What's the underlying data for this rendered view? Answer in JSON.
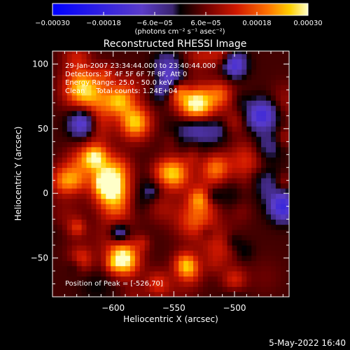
{
  "chart_data": {
    "type": "heatmap",
    "title": "Reconstructed RHESSI Image",
    "xlabel": "Heliocentric X (arcsec)",
    "ylabel": "Heliocentric Y (arcsec)",
    "xlim": [
      -650,
      -455
    ],
    "ylim": [
      -80,
      110
    ],
    "x_ticks": [
      {
        "value": -600,
        "label": "−600"
      },
      {
        "value": -550,
        "label": "−550"
      },
      {
        "value": -500,
        "label": "−500"
      }
    ],
    "y_ticks": [
      {
        "value": 100,
        "label": "100"
      },
      {
        "value": 50,
        "label": "50"
      },
      {
        "value": 0,
        "label": "0"
      },
      {
        "value": -50,
        "label": "−50"
      }
    ],
    "colorbar": {
      "range": [
        -0.0003,
        0.0003
      ],
      "tick_labels": [
        "−0.00030",
        "−0.00018",
        "−6.0e−05",
        "6.0e−05",
        "0.00018",
        "0.00030"
      ],
      "unit_label": "(photons cm⁻² s⁻¹ asec⁻²)"
    },
    "annotations": [
      "29-Jan-2007 23:34:44.000 to 23:40:44.000",
      "Detectors: 3F 4F 5F 6F 7F 8F, Att 0",
      "Energy Range: 25.0 - 50.0 keV",
      "Clean     Total counts: 1.24E+04"
    ],
    "peak_label": "Position of Peak = [-526,70]",
    "peak": {
      "x": -526,
      "y": 70
    },
    "hot_spots": [
      {
        "x": -532,
        "y": 68,
        "amp": 1.0,
        "sigma": 10
      },
      {
        "x": -603,
        "y": 6,
        "amp": 0.95,
        "sigma": 10
      },
      {
        "x": -592,
        "y": -50,
        "amp": 0.9,
        "sigma": 9
      },
      {
        "x": -625,
        "y": 82,
        "amp": 0.85,
        "sigma": 11
      },
      {
        "x": -582,
        "y": 55,
        "amp": 0.75,
        "sigma": 9
      },
      {
        "x": -552,
        "y": 15,
        "amp": 0.7,
        "sigma": 9
      },
      {
        "x": -615,
        "y": 28,
        "amp": 0.6,
        "sigma": 7
      },
      {
        "x": -540,
        "y": -55,
        "amp": 0.65,
        "sigma": 7
      },
      {
        "x": -515,
        "y": 20,
        "amp": 0.45,
        "sigma": 8
      },
      {
        "x": -500,
        "y": -68,
        "amp": 0.45,
        "sigma": 7
      },
      {
        "x": -640,
        "y": 10,
        "amp": 0.55,
        "sigma": 8
      }
    ],
    "cold_spots": [
      {
        "x": -625,
        "y": 55,
        "amp": 0.6,
        "sigma": 8
      },
      {
        "x": -500,
        "y": 100,
        "amp": 0.6,
        "sigma": 7
      },
      {
        "x": -460,
        "y": -10,
        "amp": 0.65,
        "sigma": 8
      },
      {
        "x": -560,
        "y": 82,
        "amp": 0.45,
        "sigma": 7
      },
      {
        "x": -480,
        "y": 60,
        "amp": 0.4,
        "sigma": 8
      }
    ]
  },
  "footer": {
    "timestamp": "5-May-2022 16:40"
  }
}
